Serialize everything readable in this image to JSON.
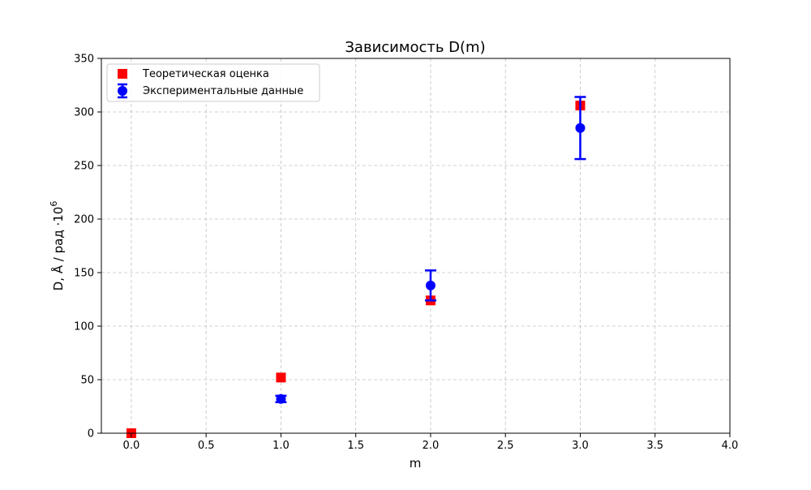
{
  "chart_data": {
    "type": "scatter",
    "title": "Зависимость D(m)",
    "xlabel": "m",
    "ylabel_main": "D, Å / рад ·10",
    "ylabel_sup": "6",
    "xlim": [
      -0.2,
      4.0
    ],
    "ylim": [
      0,
      350
    ],
    "xticks": [
      0.0,
      0.5,
      1.0,
      1.5,
      2.0,
      2.5,
      3.0,
      3.5,
      4.0
    ],
    "xtick_labels": [
      "0.0",
      "0.5",
      "1.0",
      "1.5",
      "2.0",
      "2.5",
      "3.0",
      "3.5",
      "4.0"
    ],
    "yticks": [
      0,
      50,
      100,
      150,
      200,
      250,
      300,
      350
    ],
    "ytick_labels": [
      "0",
      "50",
      "100",
      "150",
      "200",
      "250",
      "300",
      "350"
    ],
    "grid": true,
    "legend_position": "top-left",
    "series": [
      {
        "name": "Теоретическая оценка",
        "marker": "square",
        "color": "#ff0000",
        "x": [
          0,
          1,
          2,
          3
        ],
        "y": [
          0,
          52,
          124,
          306
        ]
      },
      {
        "name": "Экспериментальные данные",
        "marker": "circle",
        "color": "#0000ff",
        "x": [
          1,
          2,
          3
        ],
        "y": [
          32,
          138,
          285
        ],
        "yerr": [
          3,
          14,
          29
        ]
      }
    ]
  }
}
